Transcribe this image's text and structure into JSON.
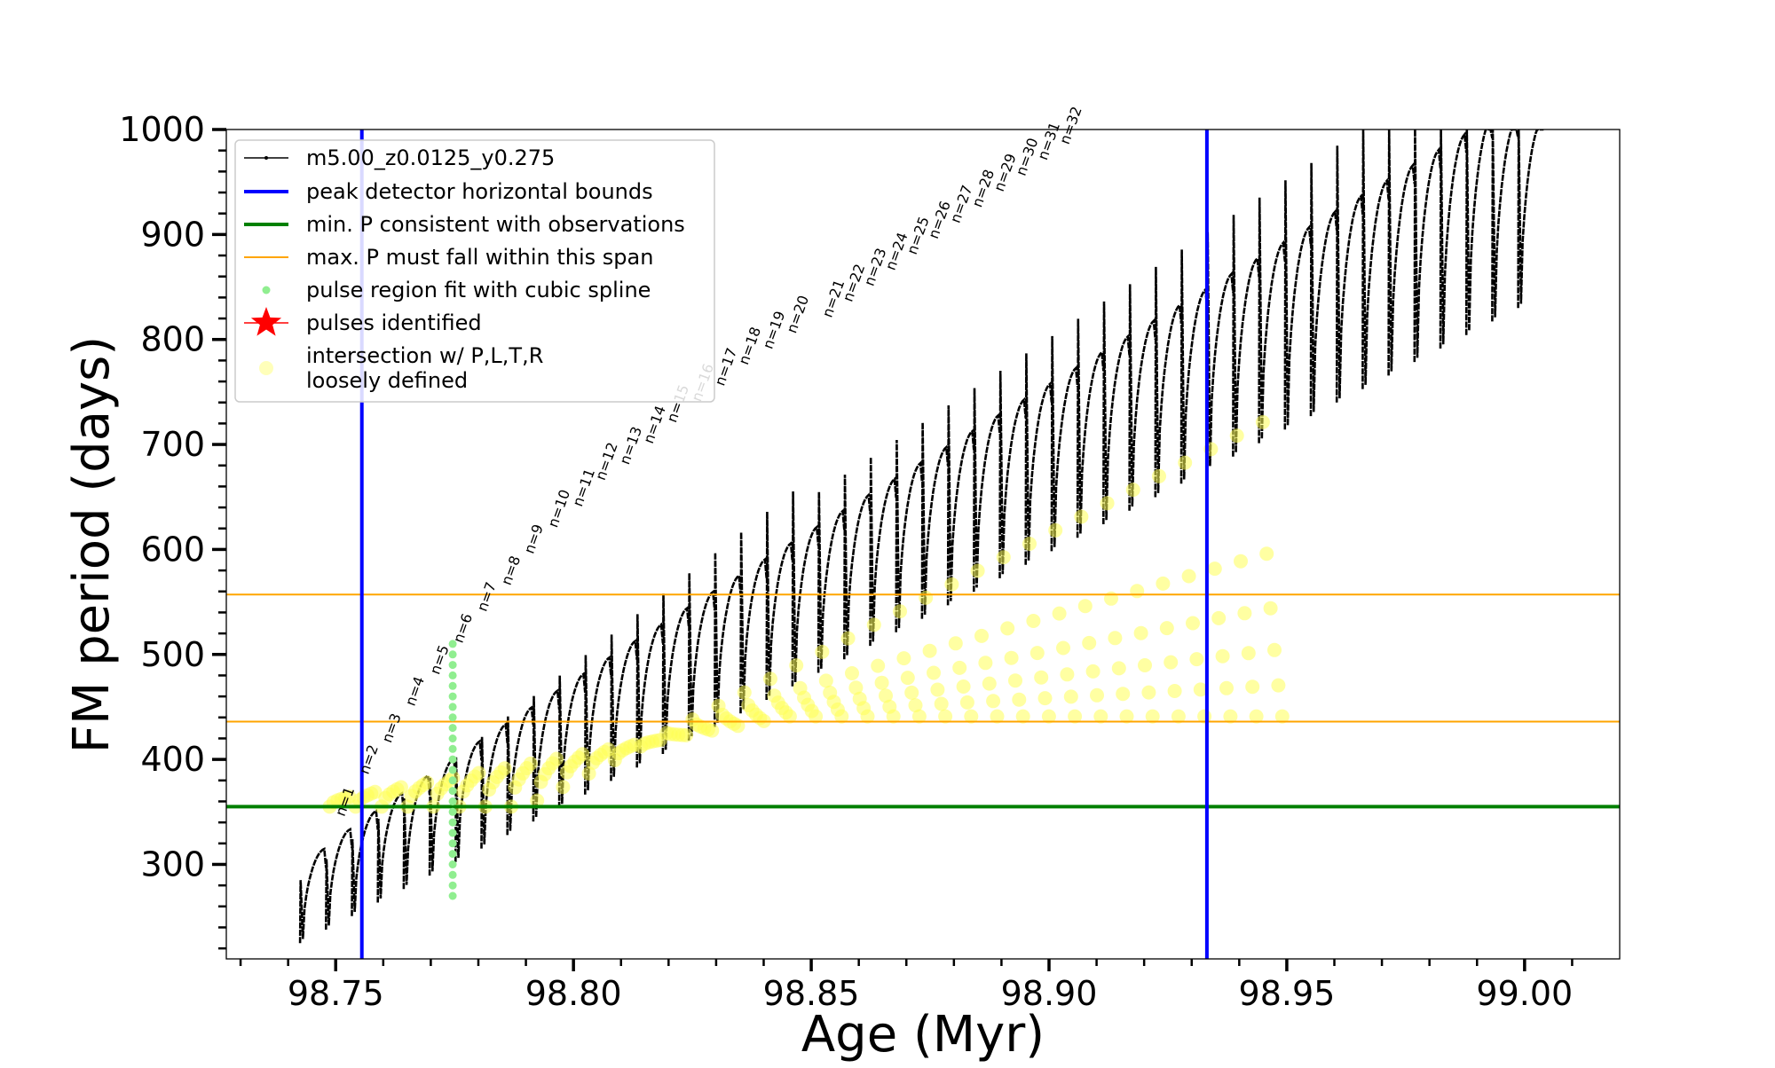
{
  "chart_data": {
    "type": "line",
    "title": "",
    "xlabel": "Age (Myr)",
    "ylabel": "FM period (days)",
    "xlim": [
      98.727,
      99.02
    ],
    "ylim": [
      210,
      1000
    ],
    "xticks": [
      98.75,
      98.8,
      98.85,
      98.9,
      98.95,
      99.0
    ],
    "xtick_labels": [
      "98.75",
      "98.80",
      "98.85",
      "98.90",
      "98.95",
      "99.00"
    ],
    "yticks": [
      300,
      400,
      500,
      600,
      700,
      800,
      900,
      1000
    ],
    "ytick_labels": [
      "300",
      "400",
      "500",
      "600",
      "700",
      "800",
      "900",
      "1000"
    ],
    "series": [
      {
        "name": "m5.00_z0.0125_y0.275",
        "color": "#000000",
        "description": "thermal pulse period track, sawtooth from 98.742 to 99.004 Myr",
        "pulse_start_age": 98.7425,
        "pulse_spacing_myr": 0.00545,
        "pulse_count": 48,
        "end_age": 99.004,
        "lower_envelope_start": 225,
        "lower_envelope_end": 830,
        "upper_envelope_start": 285,
        "upper_envelope_end": 1000,
        "inner_max_start": 315,
        "inner_max_end": 1000
      },
      {
        "name": "peak detector horizontal bounds",
        "color": "#0000ff",
        "x_values": [
          98.7555,
          98.9332
        ]
      },
      {
        "name": "min. P consistent with observations",
        "color": "#008000",
        "y_value": 355
      },
      {
        "name": "max. P must fall within this span",
        "color": "#ffa500",
        "y_values": [
          436,
          557
        ]
      },
      {
        "name": "pulse region fit with cubic spline",
        "color": "#90ee90",
        "x_value": 98.7746,
        "y_range": [
          270,
          515
        ]
      },
      {
        "name": "pulses identified",
        "color": "#ff0000"
      },
      {
        "name": "intersection w/ P,L,T,R\nloosely defined",
        "color": "#ffff66"
      }
    ],
    "legend": {
      "location": "top-left",
      "entries": [
        "m5.00_z0.0125_y0.275",
        "peak detector horizontal bounds",
        "min. P consistent with observations",
        "max. P must fall within this span",
        "pulse region fit with cubic spline",
        "pulses identified",
        "intersection w/ P,L,T,R\nloosely defined"
      ]
    },
    "annotations": [
      {
        "label": "n=1",
        "x": 98.7518,
        "y": 345
      },
      {
        "label": "n=2",
        "x": 98.7568,
        "y": 385
      },
      {
        "label": "n=3",
        "x": 98.7616,
        "y": 415
      },
      {
        "label": "n=4",
        "x": 98.7665,
        "y": 450
      },
      {
        "label": "n=5",
        "x": 98.7717,
        "y": 480
      },
      {
        "label": "n=6",
        "x": 98.7766,
        "y": 510
      },
      {
        "label": "n=7",
        "x": 98.7816,
        "y": 540
      },
      {
        "label": "n=8",
        "x": 98.7867,
        "y": 565
      },
      {
        "label": "n=9",
        "x": 98.7915,
        "y": 595
      },
      {
        "label": "n=10",
        "x": 98.7965,
        "y": 620
      },
      {
        "label": "n=11",
        "x": 98.8017,
        "y": 640
      },
      {
        "label": "n=12",
        "x": 98.8065,
        "y": 665
      },
      {
        "label": "n=13",
        "x": 98.8116,
        "y": 680
      },
      {
        "label": "n=14",
        "x": 98.8166,
        "y": 700
      },
      {
        "label": "n=15",
        "x": 98.8215,
        "y": 720
      },
      {
        "label": "n=16",
        "x": 98.8267,
        "y": 740
      },
      {
        "label": "n=17",
        "x": 98.8316,
        "y": 755
      },
      {
        "label": "n=18",
        "x": 98.8366,
        "y": 775
      },
      {
        "label": "n=19",
        "x": 98.8417,
        "y": 790
      },
      {
        "label": "n=20",
        "x": 98.8467,
        "y": 805
      },
      {
        "label": "n=21",
        "x": 98.8542,
        "y": 820
      },
      {
        "label": "n=22",
        "x": 98.8585,
        "y": 835
      },
      {
        "label": "n=23",
        "x": 98.863,
        "y": 850
      },
      {
        "label": "n=24",
        "x": 98.8675,
        "y": 865
      },
      {
        "label": "n=25",
        "x": 98.872,
        "y": 880
      },
      {
        "label": "n=26",
        "x": 98.8765,
        "y": 895
      },
      {
        "label": "n=27",
        "x": 98.8811,
        "y": 910
      },
      {
        "label": "n=28",
        "x": 98.8857,
        "y": 925
      },
      {
        "label": "n=29",
        "x": 98.8903,
        "y": 940
      },
      {
        "label": "n=30",
        "x": 98.8949,
        "y": 955
      },
      {
        "label": "n=31",
        "x": 98.8995,
        "y": 970
      },
      {
        "label": "n=32",
        "x": 98.9041,
        "y": 985
      }
    ]
  }
}
